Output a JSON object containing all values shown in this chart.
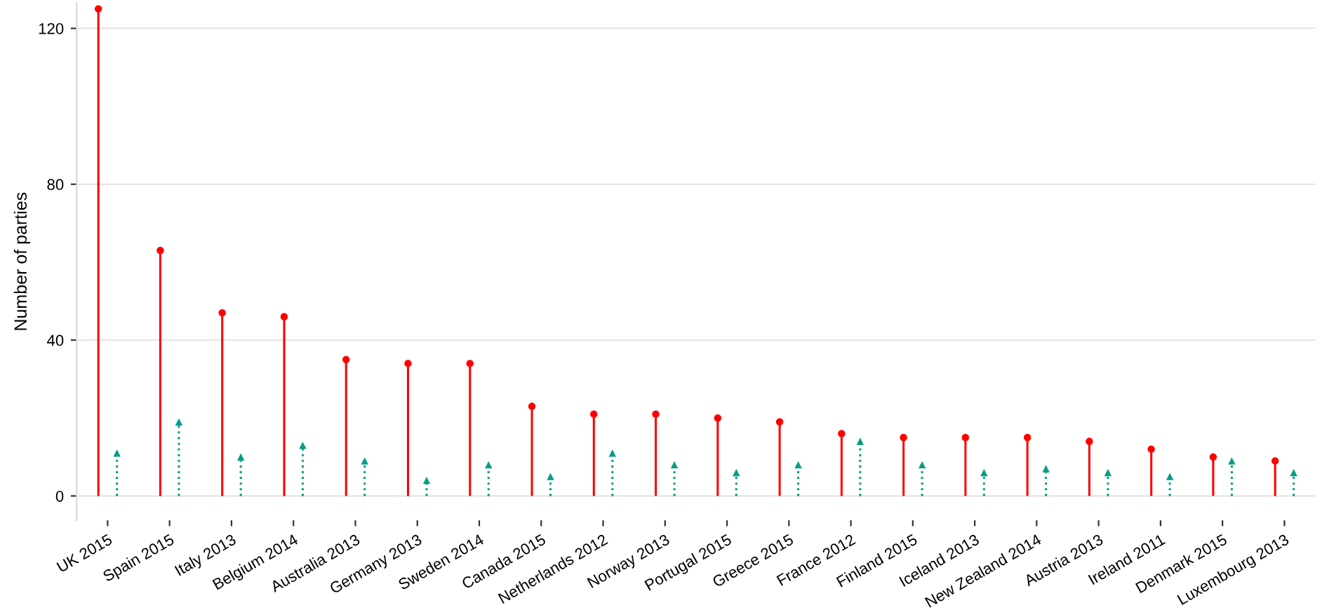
{
  "chart_data": {
    "type": "lollipop",
    "ylabel": "Number of parties",
    "categories": [
      "UK 2015",
      "Spain 2015",
      "Italy 2013",
      "Belgium 2014",
      "Australia 2013",
      "Germany 2013",
      "Sweden 2014",
      "Canada 2015",
      "Netherlands 2012",
      "Norway 2013",
      "Portugal 2015",
      "Greece 2015",
      "France 2012",
      "Finland 2015",
      "Iceland 2013",
      "New Zealand 2014",
      "Austria 2013",
      "Ireland 2011",
      "Denmark 2015",
      "Luxembourg 2013"
    ],
    "series": [
      {
        "color": "#ff0000",
        "marker": "circle",
        "line_style": "solid",
        "values": [
          125,
          63,
          47,
          46,
          35,
          34,
          34,
          23,
          21,
          21,
          20,
          19,
          16,
          15,
          15,
          15,
          14,
          12,
          10,
          9
        ]
      },
      {
        "color": "#009e84",
        "marker": "triangle",
        "line_style": "dotted",
        "values": [
          11,
          19,
          10,
          13,
          9,
          4,
          8,
          5,
          11,
          8,
          6,
          8,
          14,
          8,
          6,
          7,
          6,
          5,
          9,
          6
        ]
      }
    ],
    "ylim": [
      -6.25,
      126.5
    ],
    "yticks": [
      0,
      40,
      80,
      120
    ],
    "grid": "y"
  }
}
